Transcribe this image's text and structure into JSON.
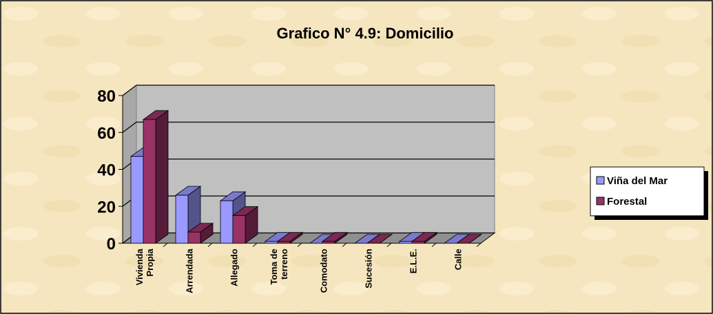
{
  "chart_data": {
    "type": "bar3d",
    "title": "Grafico N° 4.9: Domicilio",
    "categories": [
      "Vivienda\nPropia",
      "Arrendada",
      "Allegado",
      "Toma de\nterreno",
      "Comodato",
      "Sucesión",
      "E.L.E.",
      "Calle"
    ],
    "series": [
      {
        "name": "Viña del Mar",
        "color": "#9999ff",
        "values": [
          47,
          26,
          23,
          1,
          0,
          0,
          1,
          0
        ]
      },
      {
        "name": "Forestal",
        "color": "#993366",
        "values": [
          67,
          6,
          15,
          1,
          1,
          0,
          1,
          0
        ]
      }
    ],
    "ylim": [
      0,
      80
    ],
    "yticks": [
      0,
      20,
      40,
      60,
      80
    ],
    "grid": true,
    "legend": "right"
  }
}
